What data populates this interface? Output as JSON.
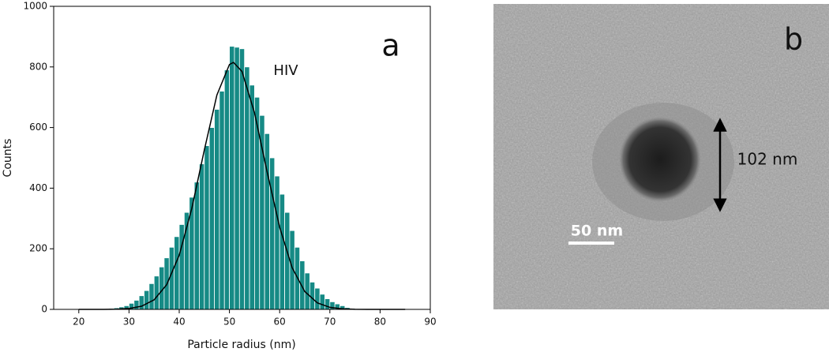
{
  "chart_data": {
    "type": "histogram",
    "panel_label": "a",
    "annotation": "HIV",
    "xlabel": "Particle radius (nm)",
    "ylabel": "Counts",
    "xlim": [
      15,
      90
    ],
    "ylim": [
      0,
      1000
    ],
    "xticks": [
      20,
      30,
      40,
      50,
      60,
      70,
      80,
      90
    ],
    "yticks": [
      0,
      200,
      400,
      600,
      800,
      1000
    ],
    "color": "#168a85",
    "bins": [
      25,
      26,
      27,
      28,
      29,
      30,
      31,
      32,
      33,
      34,
      35,
      36,
      37,
      38,
      39,
      40,
      41,
      42,
      43,
      44,
      45,
      46,
      47,
      48,
      49,
      50,
      51,
      52,
      53,
      54,
      55,
      56,
      57,
      58,
      59,
      60,
      61,
      62,
      63,
      64,
      65,
      66,
      67,
      68,
      69,
      70,
      71,
      72,
      73,
      74,
      75
    ],
    "values": [
      2,
      3,
      5,
      8,
      12,
      20,
      30,
      45,
      62,
      85,
      110,
      140,
      170,
      205,
      240,
      280,
      320,
      370,
      420,
      480,
      540,
      600,
      660,
      720,
      790,
      868,
      865,
      860,
      800,
      740,
      700,
      640,
      580,
      500,
      440,
      380,
      320,
      260,
      205,
      160,
      120,
      90,
      70,
      50,
      35,
      25,
      18,
      12,
      6,
      3
    ],
    "fit": {
      "color": "#000000",
      "x": [
        20,
        25,
        27.5,
        30,
        32.5,
        35,
        37.5,
        40,
        42.5,
        45,
        47.5,
        50,
        50.8,
        52.5,
        55,
        57.5,
        60,
        62.5,
        65,
        67.5,
        70,
        72.5,
        75,
        77.5,
        80,
        85
      ],
      "values": [
        0,
        0.1,
        0.7,
        2.9,
        10.4,
        31.6,
        81.5,
        178.8,
        332.8,
        526,
        707,
        808,
        815,
        785,
        648,
        454,
        271,
        137,
        59,
        21.7,
        6.7,
        1.8,
        0.4,
        0.1,
        0,
        0
      ]
    }
  },
  "image_panel": {
    "panel_label": "b",
    "measurement": "102 nm",
    "scale_bar": "50 nm"
  }
}
